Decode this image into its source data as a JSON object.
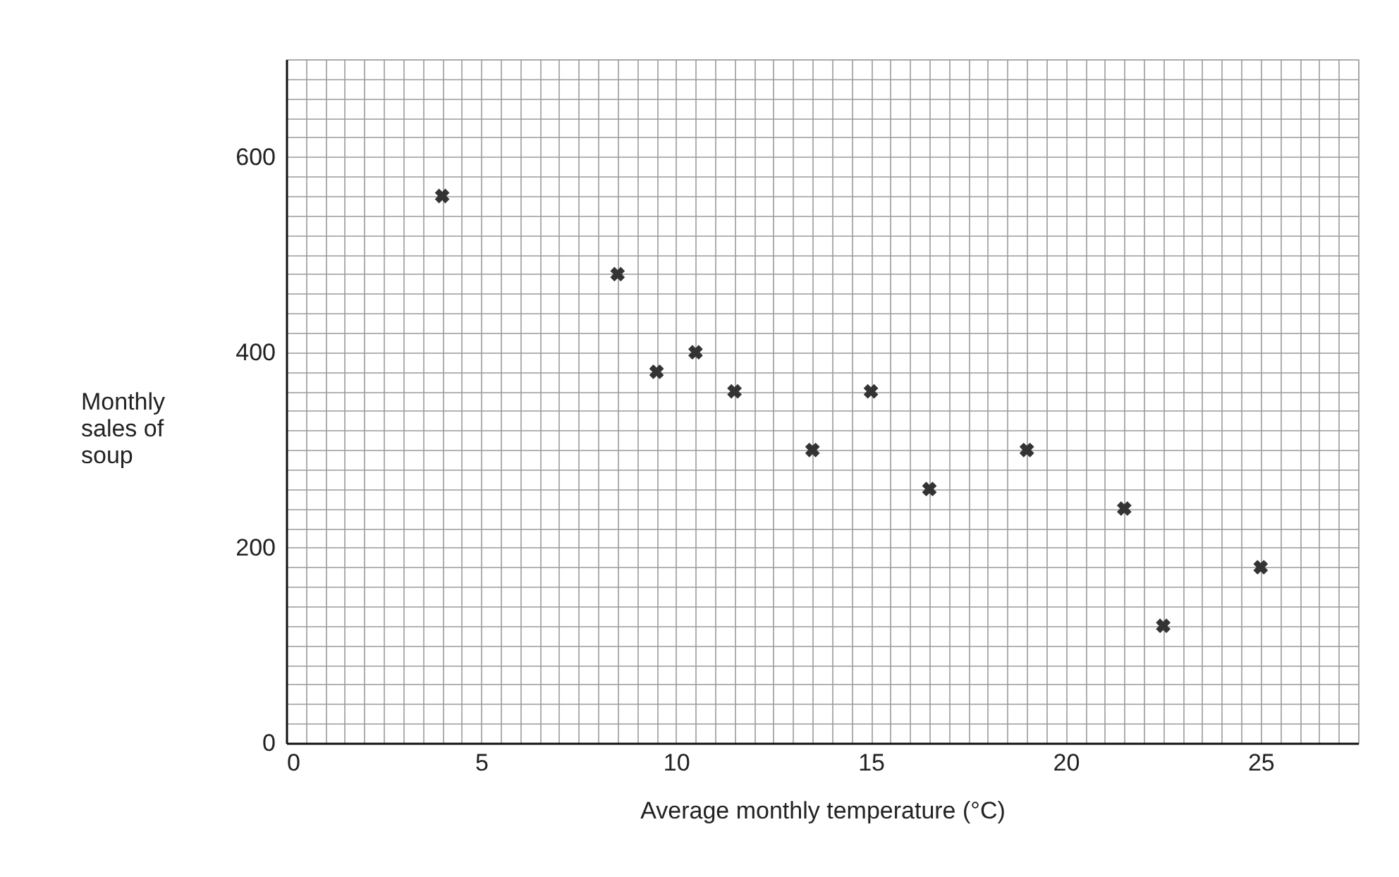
{
  "chart_data": {
    "type": "scatter",
    "xlabel": "Average monthly temperature (°C)",
    "ylabel": "Monthly\nsales of\nsoup",
    "marker": "cross",
    "grid": true,
    "x": [
      4,
      8.5,
      9.5,
      10.5,
      11.5,
      13.5,
      15,
      16.5,
      19,
      21.5,
      22.5,
      25
    ],
    "series": [
      {
        "color": "#333333",
        "values": [
          560,
          480,
          380,
          400,
          360,
          300,
          360,
          260,
          300,
          240,
          120,
          180
        ]
      }
    ],
    "xlim": [
      0,
      27.5
    ],
    "ylim": [
      0,
      700
    ],
    "xticks": [
      0,
      {
        "value": 0.5,
        "label": null
      },
      {
        "value": 1,
        "label": null
      },
      {
        "value": 1.5,
        "label": null
      },
      {
        "value": 2,
        "label": null
      },
      {
        "value": 2.5,
        "label": null
      },
      {
        "value": 3,
        "label": null
      },
      {
        "value": 3.5,
        "label": null
      },
      {
        "value": 4,
        "label": null
      },
      {
        "value": 4.5,
        "label": null
      },
      5,
      {
        "value": 5.5,
        "label": null
      },
      {
        "value": 6,
        "label": null
      },
      {
        "value": 6.5,
        "label": null
      },
      {
        "value": 7,
        "label": null
      },
      {
        "value": 7.5,
        "label": null
      },
      {
        "value": 8,
        "label": null
      },
      {
        "value": 8.5,
        "label": null
      },
      {
        "value": 9,
        "label": null
      },
      {
        "value": 9.5,
        "label": null
      },
      10,
      {
        "value": 10.5,
        "label": null
      },
      {
        "value": 11,
        "label": null
      },
      {
        "value": 11.5,
        "label": null
      },
      {
        "value": 12,
        "label": null
      },
      {
        "value": 12.5,
        "label": null
      },
      {
        "value": 13,
        "label": null
      },
      {
        "value": 13.5,
        "label": null
      },
      {
        "value": 14,
        "label": null
      },
      {
        "value": 14.5,
        "label": null
      },
      15,
      {
        "value": 15.5,
        "label": null
      },
      {
        "value": 16,
        "label": null
      },
      {
        "value": 16.5,
        "label": null
      },
      {
        "value": 17,
        "label": null
      },
      {
        "value": 17.5,
        "label": null
      },
      {
        "value": 18,
        "label": null
      },
      {
        "value": 18.5,
        "label": null
      },
      {
        "value": 19,
        "label": null
      },
      {
        "value": 19.5,
        "label": null
      },
      20,
      {
        "value": 20.5,
        "label": null
      },
      {
        "value": 21,
        "label": null
      },
      {
        "value": 21.5,
        "label": null
      },
      {
        "value": 22,
        "label": null
      },
      {
        "value": 22.5,
        "label": null
      },
      {
        "value": 23,
        "label": null
      },
      {
        "value": 23.5,
        "label": null
      },
      {
        "value": 24,
        "label": null
      },
      {
        "value": 24.5,
        "label": null
      },
      25,
      {
        "value": 25.5,
        "label": null
      },
      {
        "value": 26,
        "label": null
      },
      {
        "value": 26.5,
        "label": null
      },
      {
        "value": 27,
        "label": null
      },
      {
        "value": 27.5,
        "label": null
      }
    ],
    "yticks": [
      0,
      {
        "value": 20,
        "label": null
      },
      {
        "value": 40,
        "label": null
      },
      {
        "value": 60,
        "label": null
      },
      {
        "value": 80,
        "label": null
      },
      {
        "value": 100,
        "label": null
      },
      {
        "value": 120,
        "label": null
      },
      {
        "value": 140,
        "label": null
      },
      {
        "value": 160,
        "label": null
      },
      {
        "value": 180,
        "label": null
      },
      200,
      {
        "value": 220,
        "label": null
      },
      {
        "value": 240,
        "label": null
      },
      {
        "value": 260,
        "label": null
      },
      {
        "value": 280,
        "label": null
      },
      {
        "value": 300,
        "label": null
      },
      {
        "value": 320,
        "label": null
      },
      {
        "value": 340,
        "label": null
      },
      {
        "value": 360,
        "label": null
      },
      {
        "value": 380,
        "label": null
      },
      400,
      {
        "value": 420,
        "label": null
      },
      {
        "value": 440,
        "label": null
      },
      {
        "value": 460,
        "label": null
      },
      {
        "value": 480,
        "label": null
      },
      {
        "value": 500,
        "label": null
      },
      {
        "value": 520,
        "label": null
      },
      {
        "value": 540,
        "label": null
      },
      {
        "value": 560,
        "label": null
      },
      {
        "value": 580,
        "label": null
      },
      600,
      {
        "value": 620,
        "label": null
      },
      {
        "value": 640,
        "label": null
      },
      {
        "value": 660,
        "label": null
      },
      {
        "value": 680,
        "label": null
      },
      {
        "value": 700,
        "label": null
      }
    ]
  }
}
